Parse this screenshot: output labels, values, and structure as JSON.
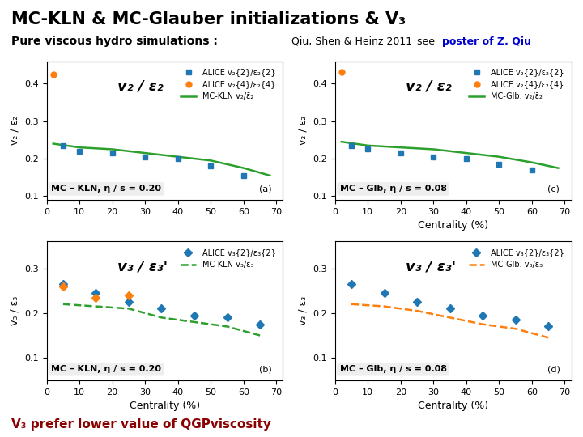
{
  "title": "MC-KLN & MC-Glauber initializations & V₃",
  "subtitle": "Pure viscous hydro simulations :",
  "annotations": [
    {
      "text": "Qiu, Shen & Heinz 2011"
    },
    {
      "text": "see "
    },
    {
      "text": "poster of Z. Qiu",
      "color": "#0000cc"
    },
    {
      "text": "V₃ prefer lower value of QGPviscosity",
      "color": "#8b0000"
    }
  ],
  "chart_data": [
    {
      "type": "line",
      "y_label": "v₂ / ε₂",
      "xlim": [
        0,
        72
      ],
      "xticks": [
        0,
        10,
        20,
        30,
        40,
        50,
        60,
        70
      ],
      "ylim": [
        0.09,
        0.46
      ],
      "yticks": [
        0.1,
        0.2,
        0.3,
        0.4
      ],
      "legend": "upper right",
      "annotations": [
        {
          "text": "v₂ / ε₂"
        },
        {
          "text": "MC – KLN, η / s = 0.20"
        },
        {
          "text": "(a)"
        }
      ],
      "series": [
        {
          "name": "ALICE v₂{2}/ε₂{2}",
          "type": "scatter",
          "marker": "square",
          "x": [
            5,
            10,
            20,
            30,
            40,
            50,
            60
          ],
          "values": [
            0.235,
            0.22,
            0.215,
            0.205,
            0.2,
            0.18,
            0.155
          ]
        },
        {
          "name": "ALICE v₂{4}/ε₂{4}",
          "type": "scatter",
          "marker": "circle",
          "x": [
            2
          ],
          "values": [
            0.425
          ]
        },
        {
          "name": "MC-KLN v₂/ε̄₂",
          "type": "line",
          "line_style": "solid",
          "x": [
            2,
            10,
            20,
            30,
            40,
            50,
            60,
            68
          ],
          "values": [
            0.24,
            0.23,
            0.225,
            0.215,
            0.205,
            0.195,
            0.175,
            0.155
          ]
        }
      ]
    },
    {
      "type": "line",
      "x_label": "Centrality (%)",
      "y_label": "v₃ / ε₃",
      "xlim": [
        0,
        72
      ],
      "xticks": [
        0,
        10,
        20,
        30,
        40,
        50,
        60,
        70
      ],
      "ylim": [
        0.05,
        0.36
      ],
      "yticks": [
        0.1,
        0.2,
        0.3
      ],
      "legend": "upper right",
      "annotations": [
        {
          "text": "v₃ / ε₃'"
        },
        {
          "text": "MC – KLN, η / s = 0.20"
        },
        {
          "text": "(b)"
        }
      ],
      "series": [
        {
          "name": "ALICE v₃{2}/ε₃{2}",
          "type": "scatter",
          "marker": "diamond",
          "x": [
            5,
            15,
            25,
            35,
            45,
            55,
            65
          ],
          "values": [
            0.265,
            0.245,
            0.225,
            0.21,
            0.195,
            0.19,
            0.175
          ]
        },
        {
          "type": "scatter",
          "marker": "diamond",
          "x": [
            5,
            15,
            25
          ],
          "values": [
            0.26,
            0.235,
            0.24
          ]
        },
        {
          "name": "MC-KLN v₃/ε₃",
          "type": "line",
          "line_style": "dashed",
          "x": [
            5,
            15,
            25,
            35,
            45,
            55,
            65
          ],
          "values": [
            0.22,
            0.215,
            0.21,
            0.19,
            0.18,
            0.17,
            0.15
          ]
        }
      ]
    },
    {
      "type": "line",
      "x_label": "Centrality (%)",
      "y_label": "v₂ / ε₂",
      "xlim": [
        0,
        72
      ],
      "xticks": [
        0,
        10,
        20,
        30,
        40,
        50,
        60,
        70
      ],
      "ylim": [
        0.09,
        0.46
      ],
      "yticks": [
        0.1,
        0.2,
        0.3,
        0.4
      ],
      "legend": "upper right",
      "annotations": [
        {
          "text": "v₂ / ε₂"
        },
        {
          "text": "MC – Glb, η / s = 0.08"
        },
        {
          "text": "(c)"
        }
      ],
      "series": [
        {
          "name": "ALICE v₂{2}/ε₂{2}",
          "type": "scatter",
          "marker": "square",
          "x": [
            5,
            10,
            20,
            30,
            40,
            50,
            60
          ],
          "values": [
            0.235,
            0.225,
            0.215,
            0.205,
            0.2,
            0.185,
            0.17
          ]
        },
        {
          "name": "ALICE v₂{4}/ε₂{4}",
          "type": "scatter",
          "marker": "circle",
          "x": [
            2
          ],
          "values": [
            0.43
          ]
        },
        {
          "name": "MC-Glb. v₂/ε̄₂",
          "type": "line",
          "line_style": "solid",
          "x": [
            2,
            10,
            20,
            30,
            40,
            50,
            60,
            68
          ],
          "values": [
            0.245,
            0.235,
            0.23,
            0.225,
            0.215,
            0.205,
            0.19,
            0.175
          ]
        }
      ]
    },
    {
      "type": "line",
      "x_label": "Centrality (%)",
      "y_label": "v₃ / ε₃",
      "xlim": [
        0,
        72
      ],
      "xticks": [
        0,
        10,
        20,
        30,
        40,
        50,
        60,
        70
      ],
      "ylim": [
        0.05,
        0.36
      ],
      "yticks": [
        0.1,
        0.2,
        0.3
      ],
      "legend": "upper right",
      "annotations": [
        {
          "text": "v₃ / ε₃'"
        },
        {
          "text": "MC – Glb, η / s = 0.08"
        },
        {
          "text": "(d)"
        }
      ],
      "series": [
        {
          "name": "ALICE v₃{2}/ε₃{2}",
          "type": "scatter",
          "marker": "diamond",
          "x": [
            5,
            15,
            25,
            35,
            45,
            55,
            65
          ],
          "values": [
            0.265,
            0.245,
            0.225,
            0.21,
            0.195,
            0.185,
            0.17
          ]
        },
        {
          "name": "MC-Glb. v₃/ε₃",
          "type": "line",
          "line_style": "dashed",
          "x": [
            5,
            15,
            25,
            35,
            45,
            55,
            65
          ],
          "values": [
            0.22,
            0.215,
            0.205,
            0.19,
            0.175,
            0.165,
            0.145
          ]
        }
      ]
    }
  ]
}
